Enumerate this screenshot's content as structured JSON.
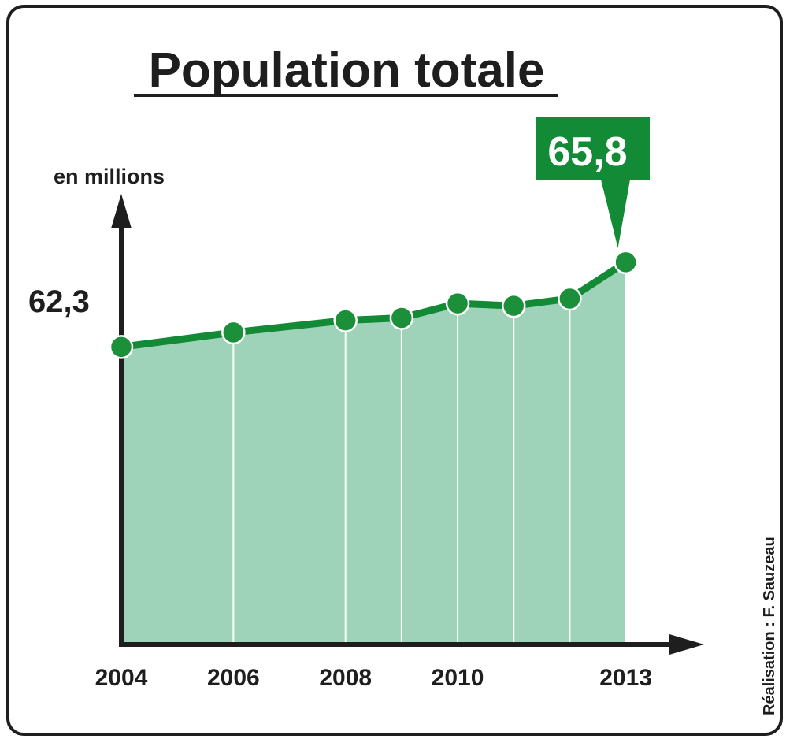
{
  "title": "Population totale",
  "credit": "Réalisation : F. Sauzeau",
  "colors": {
    "line": "#138a36",
    "marker": "#1b8f3a",
    "marker_stroke": "#ffffff",
    "area": "#9fd3b9",
    "callout_bg": "#138a36",
    "axis": "#1e1e1e",
    "text": "#1e1e1e"
  },
  "chart_data": {
    "type": "area",
    "title": "Population totale",
    "ylabel": "en millions",
    "xlabel": "",
    "x": [
      2004,
      2006,
      2008,
      2009,
      2010,
      2011,
      2012,
      2013
    ],
    "values": [
      62.3,
      62.9,
      63.4,
      63.5,
      64.1,
      64.0,
      64.3,
      65.8
    ],
    "xticks": [
      "2004",
      "2006",
      "2008",
      "2010",
      "2013"
    ],
    "labels": {
      "start": "62,3",
      "end": "65,8"
    },
    "xlim": [
      2004,
      2014.2
    ],
    "ylim": [
      50,
      68.5
    ],
    "grid": false,
    "legend": "none"
  }
}
